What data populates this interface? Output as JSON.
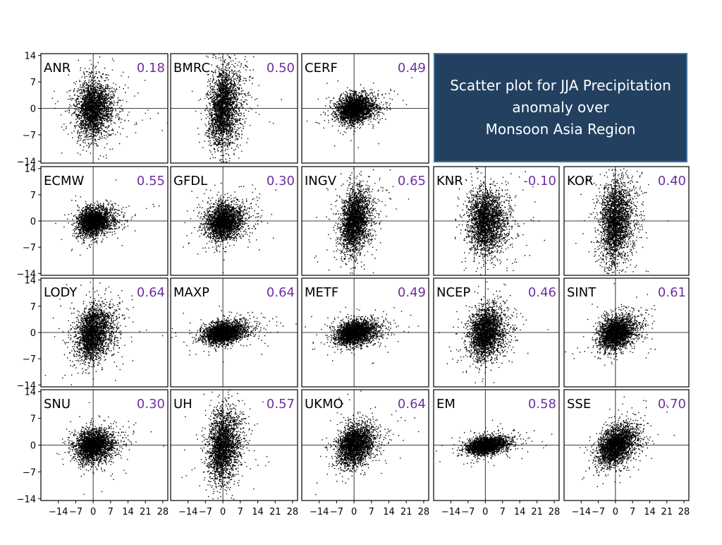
{
  "title_box": {
    "lines": [
      "Scatter plot for JJA Precipitation",
      "anomaly over",
      "Monsoon Asia Region"
    ],
    "background": "#234061"
  },
  "chart_data": {
    "type": "scatter",
    "title": "Scatter plot for JJA Precipitation anomaly over Monsoon Asia Region",
    "xlim": [
      -21,
      30
    ],
    "ylim": [
      -14.5,
      14.5
    ],
    "xticks": [
      -14,
      -7,
      0,
      7,
      14,
      21,
      28
    ],
    "xtick_labels": [
      "−14",
      "−7",
      "0",
      "7",
      "14",
      "21",
      "28"
    ],
    "yticks": [
      14,
      7,
      0,
      -7,
      -14
    ],
    "ytick_labels": [
      "14",
      "7",
      "0",
      "−7",
      "−14"
    ],
    "grid": false,
    "point_color": "#000000",
    "label_color": "#000000",
    "corr_color": "#7030a0",
    "panels": [
      {
        "name": "ANR",
        "corr": "0.18",
        "row": 0,
        "col": 0,
        "spread": {
          "sx": 3.2,
          "sy": 3.6,
          "slope": 0.05
        }
      },
      {
        "name": "BMRC",
        "corr": "0.50",
        "row": 0,
        "col": 1,
        "spread": {
          "sx": 2.8,
          "sy": 5.2,
          "slope": 0.25
        }
      },
      {
        "name": "CERF",
        "corr": "0.49",
        "row": 0,
        "col": 2,
        "spread": {
          "sx": 3.4,
          "sy": 1.8,
          "slope": 0.1
        }
      },
      {
        "name": "ECMW",
        "corr": "0.55",
        "row": 1,
        "col": 0,
        "spread": {
          "sx": 3.0,
          "sy": 1.8,
          "slope": 0.1
        }
      },
      {
        "name": "GFDL",
        "corr": "0.30",
        "row": 1,
        "col": 1,
        "spread": {
          "sx": 3.3,
          "sy": 2.4,
          "slope": 0.08
        }
      },
      {
        "name": "INGV",
        "corr": "0.65",
        "row": 1,
        "col": 2,
        "spread": {
          "sx": 2.7,
          "sy": 4.2,
          "slope": 0.3
        }
      },
      {
        "name": "KNR",
        "corr": "-0.10",
        "row": 1,
        "col": 3,
        "spread": {
          "sx": 3.4,
          "sy": 4.2,
          "slope": -0.03
        }
      },
      {
        "name": "KOR",
        "corr": "0.40",
        "row": 1,
        "col": 4,
        "spread": {
          "sx": 3.0,
          "sy": 5.5,
          "slope": 0.2
        }
      },
      {
        "name": "LODY",
        "corr": "0.64",
        "row": 2,
        "col": 0,
        "spread": {
          "sx": 3.3,
          "sy": 3.4,
          "slope": 0.2
        }
      },
      {
        "name": "MAXP",
        "corr": "0.64",
        "row": 2,
        "col": 1,
        "spread": {
          "sx": 3.8,
          "sy": 1.4,
          "slope": 0.08
        }
      },
      {
        "name": "METF",
        "corr": "0.49",
        "row": 2,
        "col": 2,
        "spread": {
          "sx": 3.6,
          "sy": 1.6,
          "slope": 0.1
        }
      },
      {
        "name": "NCEP",
        "corr": "0.46",
        "row": 2,
        "col": 3,
        "spread": {
          "sx": 3.2,
          "sy": 3.3,
          "slope": 0.15
        }
      },
      {
        "name": "SINT",
        "corr": "0.61",
        "row": 2,
        "col": 4,
        "spread": {
          "sx": 3.2,
          "sy": 2.2,
          "slope": 0.15
        }
      },
      {
        "name": "SNU",
        "corr": "0.30",
        "row": 3,
        "col": 0,
        "spread": {
          "sx": 3.4,
          "sy": 2.1,
          "slope": 0.08
        }
      },
      {
        "name": "UH",
        "corr": "0.57",
        "row": 3,
        "col": 1,
        "spread": {
          "sx": 2.8,
          "sy": 4.6,
          "slope": 0.25
        }
      },
      {
        "name": "UKMO",
        "corr": "0.64",
        "row": 3,
        "col": 2,
        "spread": {
          "sx": 3.3,
          "sy": 2.6,
          "slope": 0.18
        }
      },
      {
        "name": "EM",
        "corr": "0.58",
        "row": 3,
        "col": 3,
        "spread": {
          "sx": 3.6,
          "sy": 1.1,
          "slope": 0.08
        }
      },
      {
        "name": "SSE",
        "corr": "0.70",
        "row": 3,
        "col": 4,
        "spread": {
          "sx": 3.4,
          "sy": 2.4,
          "slope": 0.25
        }
      }
    ]
  }
}
